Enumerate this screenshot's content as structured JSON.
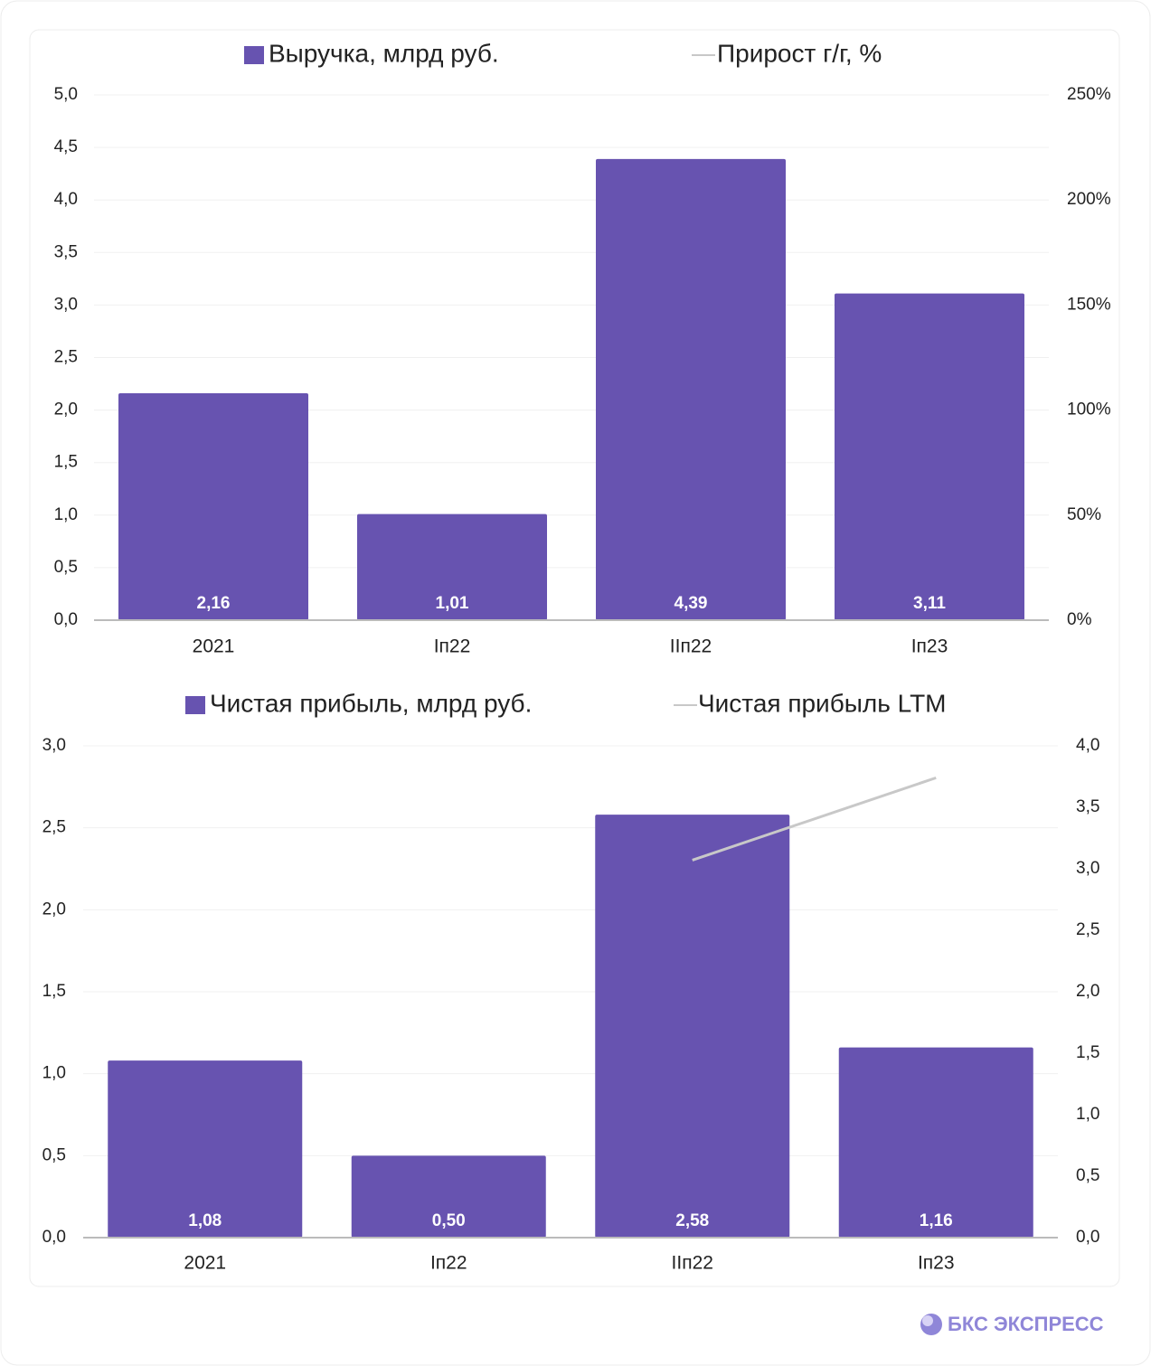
{
  "chart_data": [
    {
      "type": "bar",
      "categories": [
        "2021",
        "Iп22",
        "IIп22",
        "Iп23"
      ],
      "series": [
        {
          "name": "Выручка, млрд руб.",
          "color": "#6753b0",
          "values": [
            2.16,
            1.01,
            4.39,
            3.11
          ],
          "value_labels": [
            "2,16",
            "1,01",
            "4,39",
            "3,11"
          ]
        },
        {
          "name": "Прирост г/г, %",
          "color": "#c8c8c8",
          "type": "line",
          "axis": "y2",
          "values": [
            null,
            null,
            null,
            null
          ]
        }
      ],
      "ylim": [
        0,
        5
      ],
      "yticks": [
        {
          "value": 0,
          "label": "0,0"
        },
        {
          "value": 0.5,
          "label": "0,5"
        },
        {
          "value": 1,
          "label": "1,0"
        },
        {
          "value": 1.5,
          "label": "1,5"
        },
        {
          "value": 2,
          "label": "2,0"
        },
        {
          "value": 2.5,
          "label": "2,5"
        },
        {
          "value": 3,
          "label": "3,0"
        },
        {
          "value": 3.5,
          "label": "3,5"
        },
        {
          "value": 4,
          "label": "4,0"
        },
        {
          "value": 4.5,
          "label": "4,5"
        },
        {
          "value": 5,
          "label": "5,0"
        }
      ],
      "y2lim": [
        0,
        250
      ],
      "y2ticks": [
        {
          "value": 0,
          "label": "0%"
        },
        {
          "value": 50,
          "label": "50%"
        },
        {
          "value": 100,
          "label": "100%"
        },
        {
          "value": 150,
          "label": "150%"
        },
        {
          "value": 200,
          "label": "200%"
        },
        {
          "value": 250,
          "label": "250%"
        }
      ],
      "grid": true,
      "legend": "top"
    },
    {
      "type": "bar",
      "categories": [
        "2021",
        "Iп22",
        "IIп22",
        "Iп23"
      ],
      "series": [
        {
          "name": "Чистая прибыль, млрд руб.",
          "color": "#6753b0",
          "values": [
            1.08,
            0.5,
            2.58,
            1.16
          ],
          "value_labels": [
            "1,08",
            "0,50",
            "2,58",
            "1,16"
          ]
        },
        {
          "name": "Чистая прибыль LTM",
          "color": "#c8c8c8",
          "type": "line",
          "axis": "y2",
          "values": [
            null,
            null,
            3.07,
            3.74
          ]
        }
      ],
      "ylim": [
        0,
        3
      ],
      "yticks": [
        {
          "value": 0,
          "label": "0,0"
        },
        {
          "value": 0.5,
          "label": "0,5"
        },
        {
          "value": 1,
          "label": "1,0"
        },
        {
          "value": 1.5,
          "label": "1,5"
        },
        {
          "value": 2,
          "label": "2,0"
        },
        {
          "value": 2.5,
          "label": "2,5"
        },
        {
          "value": 3,
          "label": "3,0"
        }
      ],
      "y2lim": [
        0,
        4
      ],
      "y2ticks": [
        {
          "value": 0,
          "label": "0,0"
        },
        {
          "value": 0.5,
          "label": "0,5"
        },
        {
          "value": 1,
          "label": "1,0"
        },
        {
          "value": 1.5,
          "label": "1,5"
        },
        {
          "value": 2,
          "label": "2,0"
        },
        {
          "value": 2.5,
          "label": "2,5"
        },
        {
          "value": 3,
          "label": "3,0"
        },
        {
          "value": 3.5,
          "label": "3,5"
        },
        {
          "value": 4,
          "label": "4,0"
        }
      ],
      "grid": true,
      "legend": "top"
    }
  ],
  "footer": {
    "brand": "БКС ЭКСПРЕСС"
  }
}
